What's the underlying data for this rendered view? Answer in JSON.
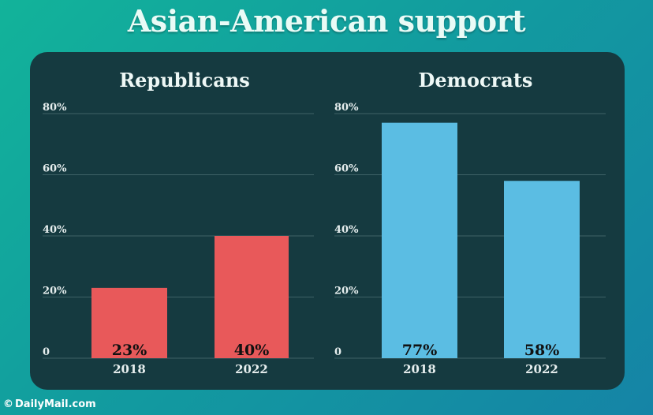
{
  "headline": "Asian-American support",
  "credit": {
    "symbol": "©",
    "text": "DailyMail.com"
  },
  "colors": {
    "republicans": "#e8595a",
    "democrats": "#5bbde3",
    "panel": "#153a40"
  },
  "chart_data": [
    {
      "type": "bar",
      "title": "Republicans",
      "categories": [
        "2018",
        "2022"
      ],
      "values": [
        23,
        40
      ],
      "data_labels": [
        "23%",
        "40%"
      ],
      "ylim": [
        0,
        80
      ],
      "yticks": [
        "0",
        "20%",
        "40%",
        "60%",
        "80%"
      ],
      "grid": true,
      "color": "#e8595a"
    },
    {
      "type": "bar",
      "title": "Democrats",
      "categories": [
        "2018",
        "2022"
      ],
      "values": [
        77,
        58
      ],
      "data_labels": [
        "77%",
        "58%"
      ],
      "ylim": [
        0,
        80
      ],
      "yticks": [
        "0",
        "20%",
        "40%",
        "60%",
        "80%"
      ],
      "grid": true,
      "color": "#5bbde3"
    }
  ]
}
